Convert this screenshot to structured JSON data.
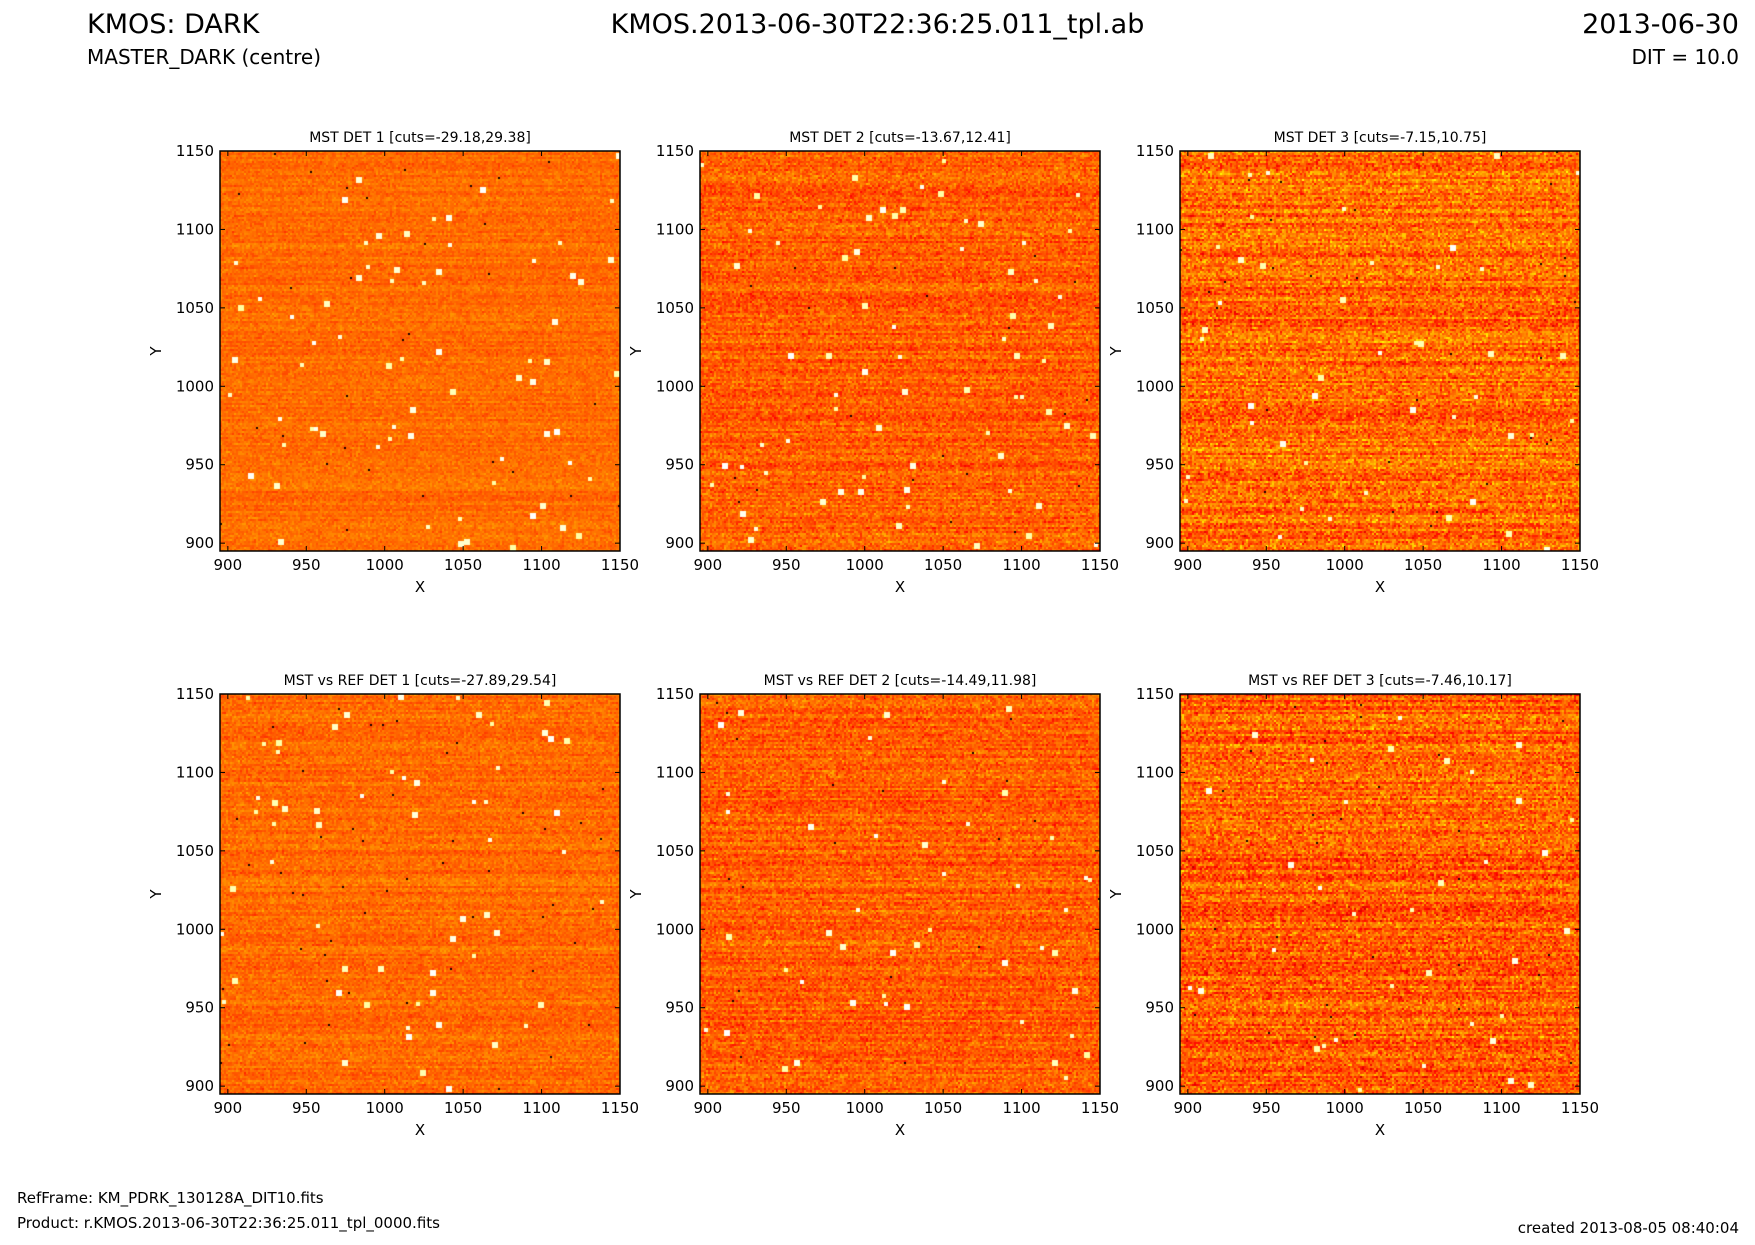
{
  "header": {
    "title_left": "KMOS: DARK",
    "subtitle_left": "MASTER_DARK (centre)",
    "title_center": "KMOS.2013-06-30T22:36:25.011_tpl.ab",
    "title_right": "2013-06-30",
    "subtitle_right": "DIT = 10.0"
  },
  "footer": {
    "ref_frame": "RefFrame: KM_PDRK_130128A_DIT10.fits",
    "product": "Product: r.KMOS.2013-06-30T22:36:25.011_tpl_0000.fits",
    "created": "created 2013-08-05 08:40:04"
  },
  "colors": {
    "map_low": "#000000",
    "map_mid": "#ff4f00",
    "map_high": "#ffffff"
  },
  "chart_data": [
    {
      "type": "heatmap",
      "title": "MST DET 1 [cuts=-29.18,29.38]",
      "xlabel": "X",
      "ylabel": "Y",
      "xlim": [
        895,
        1150
      ],
      "ylim": [
        895,
        1150
      ],
      "xticks": [
        900,
        950,
        1000,
        1050,
        1100,
        1150
      ],
      "yticks": [
        900,
        950,
        1000,
        1050,
        1100,
        1150
      ],
      "colormap": "hot"
    },
    {
      "type": "heatmap",
      "title": "MST DET 2 [cuts=-13.67,12.41]",
      "xlabel": "X",
      "ylabel": "Y",
      "xlim": [
        895,
        1150
      ],
      "ylim": [
        895,
        1150
      ],
      "xticks": [
        900,
        950,
        1000,
        1050,
        1100,
        1150
      ],
      "yticks": [
        900,
        950,
        1000,
        1050,
        1100,
        1150
      ],
      "colormap": "hot"
    },
    {
      "type": "heatmap",
      "title": "MST DET 3 [cuts=-7.15,10.75]",
      "xlabel": "X",
      "ylabel": "Y",
      "xlim": [
        895,
        1150
      ],
      "ylim": [
        895,
        1150
      ],
      "xticks": [
        900,
        950,
        1000,
        1050,
        1100,
        1150
      ],
      "yticks": [
        900,
        950,
        1000,
        1050,
        1100,
        1150
      ],
      "colormap": "hot"
    },
    {
      "type": "heatmap",
      "title": "MST vs REF DET 1 [cuts=-27.89,29.54]",
      "xlabel": "X",
      "ylabel": "Y",
      "xlim": [
        895,
        1150
      ],
      "ylim": [
        895,
        1150
      ],
      "xticks": [
        900,
        950,
        1000,
        1050,
        1100,
        1150
      ],
      "yticks": [
        900,
        950,
        1000,
        1050,
        1100,
        1150
      ],
      "colormap": "hot"
    },
    {
      "type": "heatmap",
      "title": "MST vs REF DET 2 [cuts=-14.49,11.98]",
      "xlabel": "X",
      "ylabel": "Y",
      "xlim": [
        895,
        1150
      ],
      "ylim": [
        895,
        1150
      ],
      "xticks": [
        900,
        950,
        1000,
        1050,
        1100,
        1150
      ],
      "yticks": [
        900,
        950,
        1000,
        1050,
        1100,
        1150
      ],
      "colormap": "hot"
    },
    {
      "type": "heatmap",
      "title": "MST vs REF DET 3 [cuts=-7.46,10.17]",
      "xlabel": "X",
      "ylabel": "Y",
      "xlim": [
        895,
        1150
      ],
      "ylim": [
        895,
        1150
      ],
      "xticks": [
        900,
        950,
        1000,
        1050,
        1100,
        1150
      ],
      "yticks": [
        900,
        950,
        1000,
        1050,
        1100,
        1150
      ],
      "colormap": "hot"
    }
  ]
}
